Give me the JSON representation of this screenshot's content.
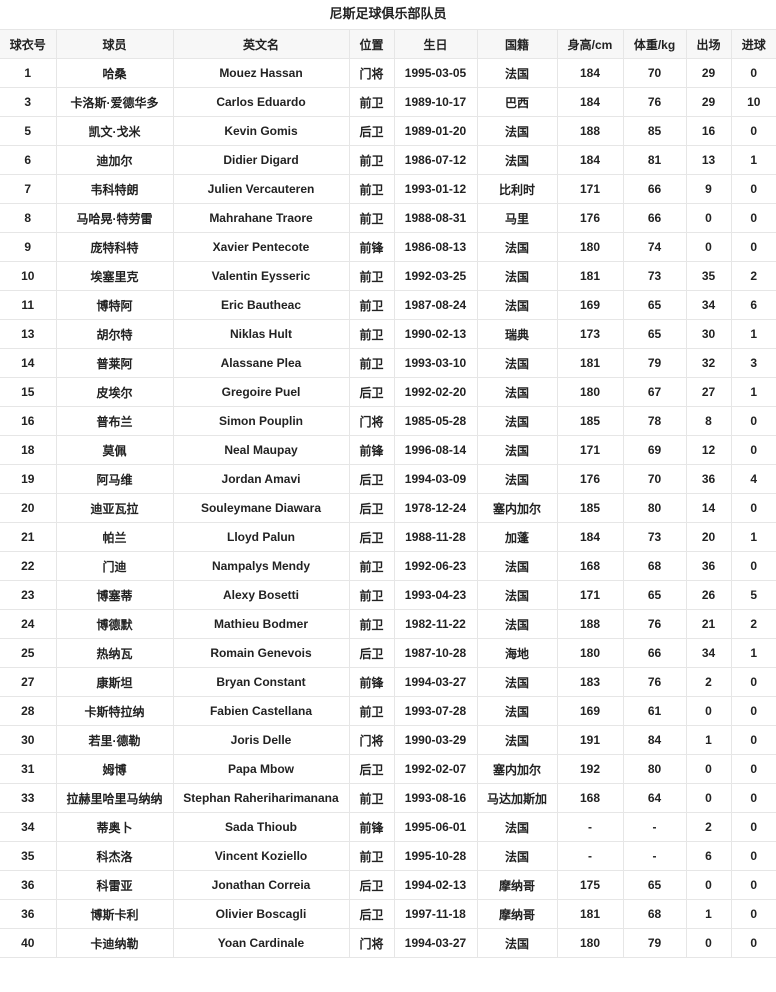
{
  "title": "尼斯足球俱乐部队员",
  "table": {
    "headers": [
      "球衣号",
      "球员",
      "英文名",
      "位置",
      "生日",
      "国籍",
      "身高/cm",
      "体重/kg",
      "出场",
      "进球"
    ],
    "rows": [
      [
        "1",
        "哈桑",
        "Mouez Hassan",
        "门将",
        "1995-03-05",
        "法国",
        "184",
        "70",
        "29",
        "0"
      ],
      [
        "3",
        "卡洛斯·爱德华多",
        "Carlos Eduardo",
        "前卫",
        "1989-10-17",
        "巴西",
        "184",
        "76",
        "29",
        "10"
      ],
      [
        "5",
        "凯文·戈米",
        "Kevin Gomis",
        "后卫",
        "1989-01-20",
        "法国",
        "188",
        "85",
        "16",
        "0"
      ],
      [
        "6",
        "迪加尔",
        "Didier Digard",
        "前卫",
        "1986-07-12",
        "法国",
        "184",
        "81",
        "13",
        "1"
      ],
      [
        "7",
        "韦科特朗",
        "Julien Vercauteren",
        "前卫",
        "1993-01-12",
        "比利时",
        "171",
        "66",
        "9",
        "0"
      ],
      [
        "8",
        "马哈晃·特劳雷",
        "Mahrahane Traore",
        "前卫",
        "1988-08-31",
        "马里",
        "176",
        "66",
        "0",
        "0"
      ],
      [
        "9",
        "庞特科特",
        "Xavier Pentecote",
        "前锋",
        "1986-08-13",
        "法国",
        "180",
        "74",
        "0",
        "0"
      ],
      [
        "10",
        "埃塞里克",
        "Valentin Eysseric",
        "前卫",
        "1992-03-25",
        "法国",
        "181",
        "73",
        "35",
        "2"
      ],
      [
        "11",
        "博特阿",
        "Eric Bautheac",
        "前卫",
        "1987-08-24",
        "法国",
        "169",
        "65",
        "34",
        "6"
      ],
      [
        "13",
        "胡尔特",
        "Niklas Hult",
        "前卫",
        "1990-02-13",
        "瑞典",
        "173",
        "65",
        "30",
        "1"
      ],
      [
        "14",
        "普莱阿",
        "Alassane Plea",
        "前卫",
        "1993-03-10",
        "法国",
        "181",
        "79",
        "32",
        "3"
      ],
      [
        "15",
        "皮埃尔",
        "Gregoire Puel",
        "后卫",
        "1992-02-20",
        "法国",
        "180",
        "67",
        "27",
        "1"
      ],
      [
        "16",
        "普布兰",
        "Simon Pouplin",
        "门将",
        "1985-05-28",
        "法国",
        "185",
        "78",
        "8",
        "0"
      ],
      [
        "18",
        "莫佩",
        "Neal Maupay",
        "前锋",
        "1996-08-14",
        "法国",
        "171",
        "69",
        "12",
        "0"
      ],
      [
        "19",
        "阿马维",
        "Jordan Amavi",
        "后卫",
        "1994-03-09",
        "法国",
        "176",
        "70",
        "36",
        "4"
      ],
      [
        "20",
        "迪亚瓦拉",
        "Souleymane Diawara",
        "后卫",
        "1978-12-24",
        "塞内加尔",
        "185",
        "80",
        "14",
        "0"
      ],
      [
        "21",
        "帕兰",
        "Lloyd Palun",
        "后卫",
        "1988-11-28",
        "加蓬",
        "184",
        "73",
        "20",
        "1"
      ],
      [
        "22",
        "门迪",
        "Nampalys Mendy",
        "前卫",
        "1992-06-23",
        "法国",
        "168",
        "68",
        "36",
        "0"
      ],
      [
        "23",
        "博塞蒂",
        "Alexy Bosetti",
        "前卫",
        "1993-04-23",
        "法国",
        "171",
        "65",
        "26",
        "5"
      ],
      [
        "24",
        "博德默",
        "Mathieu Bodmer",
        "前卫",
        "1982-11-22",
        "法国",
        "188",
        "76",
        "21",
        "2"
      ],
      [
        "25",
        "热纳瓦",
        "Romain Genevois",
        "后卫",
        "1987-10-28",
        "海地",
        "180",
        "66",
        "34",
        "1"
      ],
      [
        "27",
        "康斯坦",
        "Bryan Constant",
        "前锋",
        "1994-03-27",
        "法国",
        "183",
        "76",
        "2",
        "0"
      ],
      [
        "28",
        "卡斯特拉纳",
        "Fabien Castellana",
        "前卫",
        "1993-07-28",
        "法国",
        "169",
        "61",
        "0",
        "0"
      ],
      [
        "30",
        "若里·德勒",
        "Joris Delle",
        "门将",
        "1990-03-29",
        "法国",
        "191",
        "84",
        "1",
        "0"
      ],
      [
        "31",
        "姆博",
        "Papa Mbow",
        "后卫",
        "1992-02-07",
        "塞内加尔",
        "192",
        "80",
        "0",
        "0"
      ],
      [
        "33",
        "拉赫里哈里马纳纳",
        "Stephan Raheriharimanana",
        "前卫",
        "1993-08-16",
        "马达加斯加",
        "168",
        "64",
        "0",
        "0"
      ],
      [
        "34",
        "蒂奥卜",
        "Sada Thioub",
        "前锋",
        "1995-06-01",
        "法国",
        "-",
        "-",
        "2",
        "0"
      ],
      [
        "35",
        "科杰洛",
        "Vincent Koziello",
        "前卫",
        "1995-10-28",
        "法国",
        "-",
        "-",
        "6",
        "0"
      ],
      [
        "36",
        "科雷亚",
        "Jonathan Correia",
        "后卫",
        "1994-02-13",
        "摩纳哥",
        "175",
        "65",
        "0",
        "0"
      ],
      [
        "36",
        "博斯卡利",
        "Olivier Boscagli",
        "后卫",
        "1997-11-18",
        "摩纳哥",
        "181",
        "68",
        "1",
        "0"
      ],
      [
        "40",
        "卡迪纳勒",
        "Yoan Cardinale",
        "门将",
        "1994-03-27",
        "法国",
        "180",
        "79",
        "0",
        "0"
      ]
    ]
  }
}
